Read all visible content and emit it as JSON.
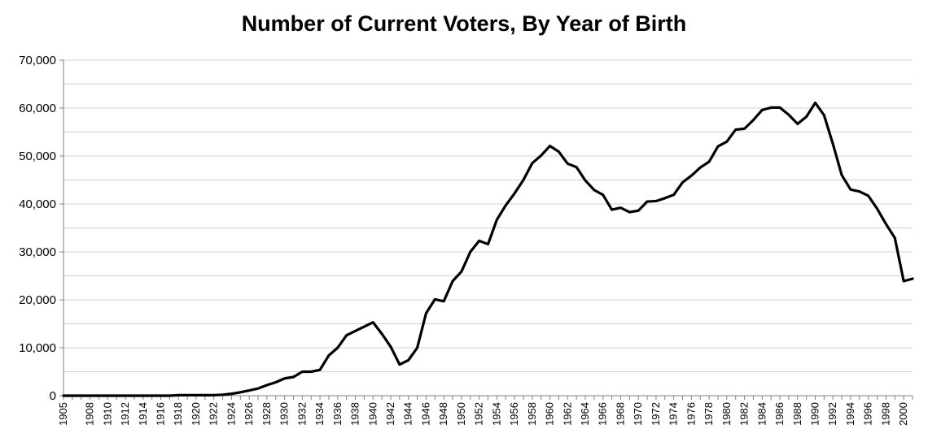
{
  "chart_data": {
    "type": "line",
    "title": "Number of Current Voters, By Year of Birth",
    "xlabel": "",
    "ylabel": "",
    "ylim": [
      0,
      70000
    ],
    "yticks": [
      0,
      10000,
      20000,
      30000,
      40000,
      50000,
      60000,
      70000
    ],
    "ytick_labels": [
      "0",
      "10,000",
      "20,000",
      "30,000",
      "40,000",
      "50,000",
      "60,000",
      "70,000"
    ],
    "xlim": [
      1905,
      2001
    ],
    "xticks": [
      1905,
      1908,
      1910,
      1912,
      1914,
      1916,
      1918,
      1920,
      1922,
      1924,
      1926,
      1928,
      1930,
      1932,
      1934,
      1936,
      1938,
      1940,
      1942,
      1944,
      1946,
      1948,
      1950,
      1952,
      1954,
      1956,
      1958,
      1960,
      1962,
      1964,
      1966,
      1968,
      1970,
      1972,
      1974,
      1976,
      1978,
      1980,
      1982,
      1984,
      1986,
      1988,
      1990,
      1992,
      1994,
      1996,
      1998,
      2000
    ],
    "grid": true,
    "legend": "none",
    "line_color": "#000000",
    "grid_color": "#d0d0d0",
    "series": [
      {
        "x": [
          1905,
          1906,
          1907,
          1908,
          1909,
          1910,
          1911,
          1912,
          1913,
          1914,
          1915,
          1916,
          1917,
          1918,
          1919,
          1920,
          1921,
          1922,
          1923,
          1924,
          1925,
          1926,
          1927,
          1928,
          1929,
          1930,
          1931,
          1932,
          1933,
          1934,
          1935,
          1936,
          1937,
          1938,
          1939,
          1940,
          1941,
          1942,
          1943,
          1944,
          1945,
          1946,
          1947,
          1948,
          1949,
          1950,
          1951,
          1952,
          1953,
          1954,
          1955,
          1956,
          1957,
          1958,
          1959,
          1960,
          1961,
          1962,
          1963,
          1964,
          1965,
          1966,
          1967,
          1968,
          1969,
          1970,
          1971,
          1972,
          1973,
          1974,
          1975,
          1976,
          1977,
          1978,
          1979,
          1980,
          1981,
          1982,
          1983,
          1984,
          1985,
          1986,
          1987,
          1988,
          1989,
          1990,
          1991,
          1992,
          1993,
          1994,
          1995,
          1996,
          1997,
          1998,
          1999,
          2000,
          2001
        ],
        "values": [
          0,
          0,
          0,
          0,
          0,
          0,
          0,
          0,
          0,
          0,
          0,
          0,
          0,
          100,
          100,
          100,
          100,
          100,
          200,
          400,
          700,
          1100,
          1500,
          2200,
          2800,
          3600,
          3900,
          5000,
          5000,
          5400,
          8400,
          10000,
          12600,
          13500,
          14400,
          15300,
          12900,
          10200,
          6500,
          7400,
          10000,
          17200,
          20100,
          19700,
          23900,
          25900,
          30000,
          32300,
          31600,
          36700,
          39700,
          42200,
          45000,
          48500,
          50100,
          52100,
          50900,
          48400,
          47700,
          44900,
          42900,
          41900,
          38800,
          39200,
          38300,
          38600,
          40500,
          40600,
          41200,
          41900,
          44500,
          45900,
          47600,
          48800,
          52000,
          53000,
          55500,
          55700,
          57500,
          59600,
          60100,
          60100,
          58600,
          56700,
          58200,
          61100,
          58500,
          52500,
          46000,
          43000,
          42600,
          41700,
          39000,
          35800,
          32900,
          23900,
          24400
        ]
      }
    ]
  }
}
